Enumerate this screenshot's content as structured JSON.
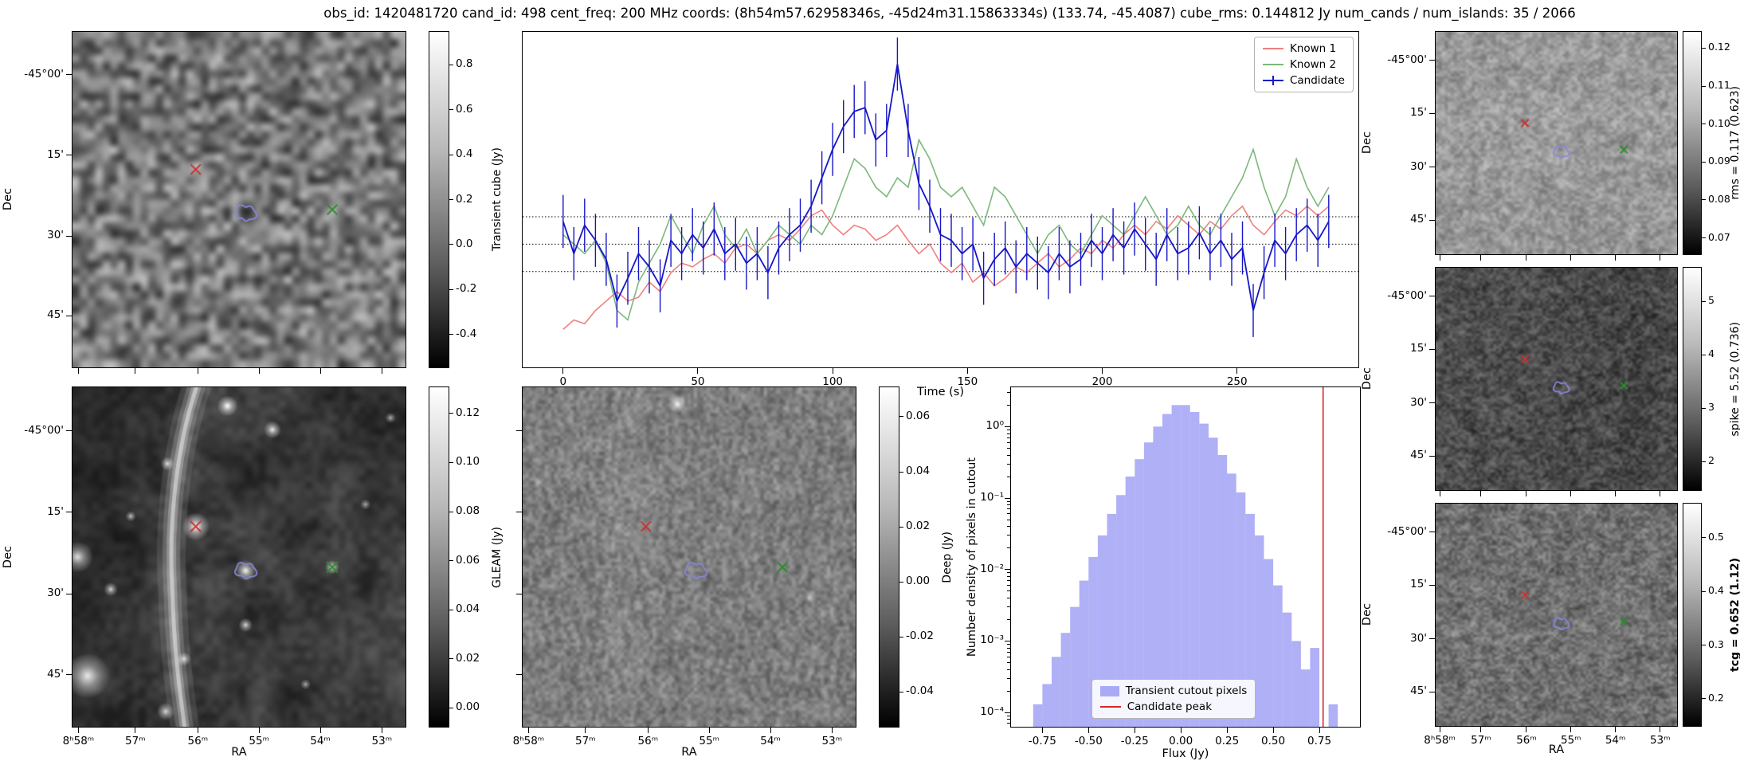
{
  "title": "obs_id: 1420481720 cand_id: 498 cent_freq: 200 MHz coords: (8h54m57.62958346s, -45d24m31.15863334s) (133.74, -45.4087) cube_rms: 0.144812 Jy num_cands / num_islands: 35 / 2066",
  "labels": {
    "dec": "Dec",
    "ra": "RA"
  },
  "axis_ticks": {
    "dec_labels": [
      "-45°00'",
      "15'",
      "30'",
      "45'"
    ],
    "dec_fracs": [
      0.13,
      0.368,
      0.608,
      0.845
    ],
    "ra_labels": [
      "8ʰ58ᵐ",
      "57ᵐ",
      "56ᵐ",
      "55ᵐ",
      "54ᵐ",
      "53ᵐ"
    ],
    "ra_fracs": [
      0.02,
      0.19,
      0.377,
      0.56,
      0.743,
      0.927
    ]
  },
  "image_panels": {
    "transient": {
      "colorbar_label": "Transient cube (Jy)",
      "ticks": [
        "0.8",
        "0.6",
        "0.4",
        "0.2",
        "0.0",
        "-0.2",
        "-0.4"
      ],
      "vmin": -0.55,
      "vmax": 0.95
    },
    "gleam": {
      "colorbar_label": "GLEAM (Jy)",
      "ticks": [
        "0.12",
        "0.10",
        "0.08",
        "0.06",
        "0.04",
        "0.02",
        "0.00"
      ],
      "vmin": -0.008,
      "vmax": 0.131
    },
    "deep": {
      "colorbar_label": "Deep (Jy)",
      "ticks": [
        "0.06",
        "0.04",
        "0.02",
        "0.00",
        "-0.02",
        "-0.04"
      ],
      "vmin": -0.053,
      "vmax": 0.071
    },
    "rms": {
      "colorbar_label": "rms = 0.117 (0.623)",
      "ticks": [
        "0.12",
        "0.11",
        "0.10",
        "0.09",
        "0.08",
        "0.07"
      ],
      "vmin": 0.0655,
      "vmax": 0.1245
    },
    "spike": {
      "colorbar_label": "spike = 5.52 (0.736)",
      "ticks": [
        "5",
        "4",
        "3",
        "2"
      ],
      "vmin": 1.45,
      "vmax": 5.65
    },
    "tcg": {
      "colorbar_label": "tcg = 0.652 (1.12)",
      "ticks": [
        "0.5",
        "0.4",
        "0.3",
        "0.2"
      ],
      "vmin": 0.148,
      "vmax": 0.565
    }
  },
  "markers": {
    "known1_cross": {
      "color": "#c83232",
      "fx": 0.37,
      "fy": 0.41
    },
    "known2_cross": {
      "color": "#2e8b2e",
      "fx": 0.78,
      "fy": 0.53
    },
    "candidate_contour": {
      "color": "#8888dd",
      "fx": 0.52,
      "fy": 0.54
    }
  },
  "chart_data": [
    {
      "type": "line",
      "name": "candidate-lightcurve",
      "xlabel": "Time (s)",
      "ylabel": "",
      "xticks": [
        0,
        50,
        100,
        150,
        200,
        250
      ],
      "xlim": [
        -15,
        295
      ],
      "ylim": [
        -0.65,
        1.12
      ],
      "hlines": [
        0.144812,
        0.0,
        -0.144812
      ],
      "hline_style": "dotted",
      "legend_position": "upper right",
      "legend": [
        "Known 1",
        "Known 2",
        "Candidate"
      ],
      "x": [
        0,
        4,
        8,
        12,
        16,
        20,
        24,
        28,
        32,
        36,
        40,
        44,
        48,
        52,
        56,
        60,
        64,
        68,
        72,
        76,
        80,
        84,
        88,
        92,
        96,
        100,
        104,
        108,
        112,
        116,
        120,
        124,
        128,
        132,
        136,
        140,
        144,
        148,
        152,
        156,
        160,
        164,
        168,
        172,
        176,
        180,
        184,
        188,
        192,
        196,
        200,
        204,
        208,
        212,
        216,
        220,
        224,
        228,
        232,
        236,
        240,
        244,
        248,
        252,
        256,
        260,
        264,
        268,
        272,
        276,
        280,
        284
      ],
      "series": [
        {
          "name": "Known 1",
          "color": "#f08080",
          "values": [
            -0.45,
            -0.4,
            -0.42,
            -0.35,
            -0.3,
            -0.25,
            -0.3,
            -0.28,
            -0.2,
            -0.25,
            -0.15,
            -0.1,
            -0.12,
            -0.08,
            -0.05,
            -0.1,
            -0.02,
            0.0,
            -0.05,
            0.02,
            0.05,
            0.02,
            0.08,
            0.15,
            0.18,
            0.1,
            0.05,
            0.1,
            0.08,
            0.02,
            0.05,
            0.1,
            0.02,
            -0.05,
            0.0,
            -0.1,
            -0.15,
            -0.1,
            -0.2,
            -0.15,
            -0.22,
            -0.18,
            -0.12,
            -0.15,
            -0.1,
            -0.05,
            -0.12,
            -0.08,
            -0.02,
            -0.05,
            0.02,
            -0.02,
            0.05,
            0.1,
            0.05,
            0.12,
            0.08,
            0.15,
            0.1,
            0.05,
            0.12,
            0.08,
            0.15,
            0.2,
            0.1,
            0.05,
            0.12,
            0.18,
            0.15,
            0.2,
            0.15,
            0.2
          ]
        },
        {
          "name": "Known 2",
          "color": "#7cb87c",
          "values": [
            0.05,
            0.0,
            -0.05,
            0.02,
            -0.1,
            -0.35,
            -0.4,
            -0.2,
            -0.1,
            0.0,
            0.15,
            0.05,
            -0.05,
            0.1,
            0.2,
            0.05,
            -0.02,
            0.08,
            -0.05,
            0.02,
            0.1,
            0.05,
            0.0,
            0.1,
            0.05,
            0.15,
            0.3,
            0.45,
            0.4,
            0.3,
            0.25,
            0.35,
            0.3,
            0.55,
            0.45,
            0.3,
            0.25,
            0.3,
            0.2,
            0.1,
            0.3,
            0.25,
            0.15,
            0.05,
            -0.05,
            0.05,
            0.1,
            0.0,
            -0.05,
            0.05,
            0.15,
            0.1,
            0.05,
            0.15,
            0.25,
            0.15,
            0.05,
            0.1,
            0.2,
            0.1,
            0.05,
            0.15,
            0.25,
            0.35,
            0.5,
            0.3,
            0.15,
            0.25,
            0.45,
            0.3,
            0.2,
            0.3
          ]
        },
        {
          "name": "Candidate",
          "color": "#1616c8",
          "errorbar": 0.14,
          "values": [
            0.12,
            -0.05,
            0.1,
            0.02,
            -0.08,
            -0.3,
            -0.18,
            -0.05,
            -0.12,
            -0.22,
            0.02,
            -0.05,
            0.05,
            -0.02,
            0.08,
            -0.05,
            0.0,
            -0.1,
            -0.05,
            -0.15,
            -0.02,
            0.05,
            0.1,
            0.2,
            0.35,
            0.5,
            0.62,
            0.7,
            0.72,
            0.55,
            0.6,
            0.95,
            0.6,
            0.32,
            0.2,
            0.05,
            0.02,
            -0.05,
            0.0,
            -0.18,
            -0.08,
            -0.02,
            -0.12,
            -0.05,
            -0.1,
            -0.15,
            -0.05,
            -0.12,
            -0.08,
            0.02,
            -0.05,
            0.05,
            -0.02,
            0.08,
            0.0,
            -0.08,
            0.05,
            -0.05,
            -0.02,
            0.06,
            -0.05,
            0.02,
            -0.08,
            -0.02,
            -0.35,
            -0.15,
            0.02,
            -0.05,
            0.05,
            0.1,
            0.02,
            0.12
          ]
        }
      ]
    },
    {
      "type": "bar",
      "name": "flux-histogram",
      "xlabel": "Flux (Jy)",
      "ylabel": "Number density of pixels in cutout",
      "yscale": "log",
      "xlim": [
        -0.92,
        0.97
      ],
      "ylog_lim": [
        -4.2,
        0.55
      ],
      "xticks": [
        "-0.75",
        "-0.50",
        "-0.25",
        "0.00",
        "0.25",
        "0.50",
        "0.75"
      ],
      "ytick_exponents": [
        0,
        -1,
        -2,
        -3,
        -4
      ],
      "ytick_labels": [
        "10⁰",
        "10⁻¹",
        "10⁻²",
        "10⁻³",
        "10⁻⁴"
      ],
      "bar_color": "#7f7ff0",
      "bin_width": 0.05,
      "bin_centers": [
        -0.775,
        -0.725,
        -0.675,
        -0.625,
        -0.575,
        -0.525,
        -0.475,
        -0.425,
        -0.375,
        -0.325,
        -0.275,
        -0.225,
        -0.175,
        -0.125,
        -0.075,
        -0.025,
        0.025,
        0.075,
        0.125,
        0.175,
        0.225,
        0.275,
        0.325,
        0.375,
        0.425,
        0.475,
        0.525,
        0.575,
        0.625,
        0.675,
        0.725,
        0.775,
        0.825
      ],
      "densities": [
        0.00013,
        0.00025,
        0.0006,
        0.0013,
        0.003,
        0.007,
        0.015,
        0.03,
        0.06,
        0.11,
        0.2,
        0.35,
        0.6,
        1.0,
        1.5,
        2.0,
        2.0,
        1.6,
        1.1,
        0.7,
        0.4,
        0.22,
        0.12,
        0.06,
        0.03,
        0.014,
        0.006,
        0.0025,
        0.001,
        0.0004,
        0.0008,
        0,
        0.00013
      ],
      "candidate_peak": 0.77,
      "peak_color": "#d62728",
      "legend": [
        "Transient cutout pixels",
        "Candidate peak"
      ]
    }
  ]
}
